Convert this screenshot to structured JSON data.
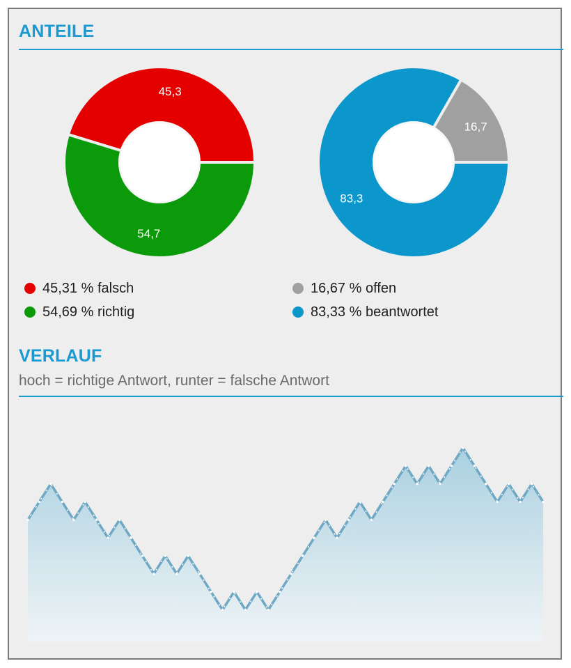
{
  "sections": {
    "anteile": "ANTEILE",
    "verlauf": "VERLAUF",
    "verlauf_subtitle": "hoch = richtige Antwort, runter = falsche Antwort"
  },
  "donuts": [
    {
      "slices": [
        {
          "value": 45.3,
          "label": "45,3",
          "color": "#e50000"
        },
        {
          "value": 54.7,
          "label": "54,7",
          "color": "#0a9a0a"
        }
      ]
    },
    {
      "slices": [
        {
          "value": 16.7,
          "label": "16,7",
          "color": "#a0a0a0"
        },
        {
          "value": 83.3,
          "label": "83,3",
          "color": "#0b96cc"
        }
      ]
    }
  ],
  "legend_left": [
    {
      "text": "45,31 % falsch",
      "color": "#e50000"
    },
    {
      "text": "54,69 % richtig",
      "color": "#0a9a0a"
    }
  ],
  "legend_right": [
    {
      "text": "16,67 % offen",
      "color": "#a0a0a0"
    },
    {
      "text": "83,33 % beantwortet",
      "color": "#0b96cc"
    }
  ],
  "chart_data": {
    "type": "area",
    "steps": [
      1,
      1,
      -1,
      -1,
      1,
      -1,
      -1,
      1,
      -1,
      -1,
      -1,
      1,
      -1,
      1,
      -1,
      -1,
      -1,
      1,
      -1,
      1,
      -1,
      1,
      1,
      1,
      1,
      1,
      -1,
      1,
      1,
      -1,
      1,
      1,
      1,
      -1,
      1,
      -1,
      1,
      1,
      -1,
      -1,
      -1,
      1,
      -1,
      1,
      -1
    ],
    "line_color": "#6fa8c4",
    "fill_top_color": "#a9d0e0"
  }
}
